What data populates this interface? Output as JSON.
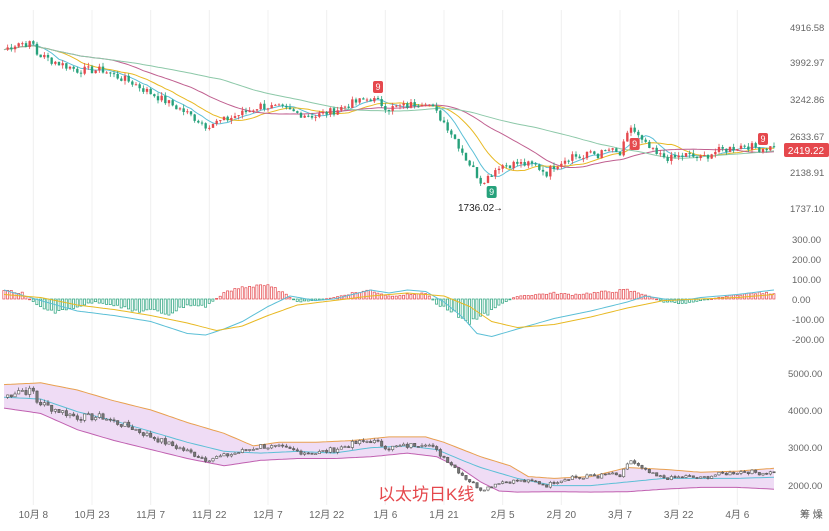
{
  "chart_data": {
    "type": "candlestick",
    "title": "以太坊日K线",
    "x_tick_labels": [
      "10月 8",
      "10月 23",
      "11月 7",
      "11月 22",
      "12月 7",
      "12月 22",
      "1月 6",
      "1月 21",
      "2月 5",
      "2月 20",
      "3月 7",
      "3月 22",
      "4月 6"
    ],
    "price_panel": {
      "y_tick_labels": [
        "4916.58",
        "3992.97",
        "3242.86",
        "2633.67",
        "2138.91",
        "1737.10"
      ],
      "y_range": [
        1600,
        5100
      ],
      "log_scale": true,
      "current_price": "2419.22",
      "low_annotation": "1736.02",
      "signal_badge": "9",
      "close_path": [
        [
          0,
          4500
        ],
        [
          4,
          4700
        ],
        [
          8,
          4650
        ],
        [
          9,
          4380
        ],
        [
          13,
          4200
        ],
        [
          20,
          3950
        ],
        [
          27,
          3950
        ],
        [
          30,
          3820
        ],
        [
          35,
          3650
        ],
        [
          38,
          3500
        ],
        [
          45,
          3200
        ],
        [
          50,
          3000
        ],
        [
          55,
          2780
        ],
        [
          60,
          2870
        ],
        [
          65,
          3000
        ],
        [
          70,
          3150
        ],
        [
          75,
          3100
        ],
        [
          80,
          3000
        ],
        [
          85,
          2950
        ],
        [
          90,
          3050
        ],
        [
          95,
          3200
        ],
        [
          100,
          3300
        ],
        [
          105,
          3100
        ],
        [
          110,
          3150
        ],
        [
          115,
          3250
        ],
        [
          118,
          3000
        ],
        [
          121,
          2750
        ],
        [
          124,
          2450
        ],
        [
          126,
          2250
        ],
        [
          128,
          2100
        ],
        [
          130,
          1950
        ],
        [
          132,
          2000
        ],
        [
          135,
          2150
        ],
        [
          140,
          2180
        ],
        [
          145,
          2150
        ],
        [
          148,
          2050
        ],
        [
          150,
          2150
        ],
        [
          155,
          2300
        ],
        [
          158,
          2250
        ],
        [
          160,
          2350
        ],
        [
          162,
          2300
        ],
        [
          165,
          2380
        ],
        [
          168,
          2300
        ],
        [
          171,
          2750
        ],
        [
          174,
          2500
        ],
        [
          178,
          2300
        ],
        [
          182,
          2250
        ],
        [
          186,
          2300
        ],
        [
          190,
          2250
        ],
        [
          194,
          2350
        ],
        [
          198,
          2400
        ],
        [
          202,
          2450
        ],
        [
          206,
          2400
        ],
        [
          210,
          2419
        ]
      ]
    },
    "macd_panel": {
      "y_tick_labels": [
        "300.00",
        "200.00",
        "100.00",
        "0.00",
        "-100.00",
        "-200.00"
      ],
      "y_range": [
        -270,
        300
      ],
      "histogram_path": [
        [
          0,
          60
        ],
        [
          5,
          40
        ],
        [
          10,
          -60
        ],
        [
          15,
          -90
        ],
        [
          20,
          -50
        ],
        [
          25,
          -20
        ],
        [
          30,
          -40
        ],
        [
          35,
          -80
        ],
        [
          40,
          -80
        ],
        [
          45,
          -100
        ],
        [
          50,
          -40
        ],
        [
          55,
          -50
        ],
        [
          60,
          40
        ],
        [
          65,
          80
        ],
        [
          70,
          100
        ],
        [
          75,
          60
        ],
        [
          80,
          -20
        ],
        [
          85,
          -10
        ],
        [
          90,
          10
        ],
        [
          95,
          40
        ],
        [
          100,
          60
        ],
        [
          105,
          20
        ],
        [
          110,
          30
        ],
        [
          115,
          40
        ],
        [
          118,
          -30
        ],
        [
          121,
          -70
        ],
        [
          124,
          -110
        ],
        [
          127,
          -150
        ],
        [
          130,
          -130
        ],
        [
          133,
          -80
        ],
        [
          136,
          -30
        ],
        [
          140,
          20
        ],
        [
          145,
          30
        ],
        [
          150,
          40
        ],
        [
          155,
          30
        ],
        [
          160,
          40
        ],
        [
          165,
          50
        ],
        [
          170,
          60
        ],
        [
          175,
          30
        ],
        [
          180,
          -20
        ],
        [
          185,
          -30
        ],
        [
          190,
          -10
        ],
        [
          195,
          10
        ],
        [
          200,
          30
        ],
        [
          205,
          40
        ],
        [
          210,
          40
        ]
      ],
      "dif_path": [
        [
          0,
          60
        ],
        [
          10,
          -10
        ],
        [
          20,
          -80
        ],
        [
          30,
          -110
        ],
        [
          40,
          -150
        ],
        [
          50,
          -230
        ],
        [
          55,
          -240
        ],
        [
          60,
          -200
        ],
        [
          65,
          -150
        ],
        [
          72,
          -50
        ],
        [
          78,
          20
        ],
        [
          85,
          -10
        ],
        [
          90,
          0
        ],
        [
          95,
          30
        ],
        [
          100,
          60
        ],
        [
          105,
          40
        ],
        [
          110,
          60
        ],
        [
          115,
          50
        ],
        [
          120,
          -20
        ],
        [
          125,
          -120
        ],
        [
          129,
          -230
        ],
        [
          133,
          -250
        ],
        [
          140,
          -200
        ],
        [
          150,
          -130
        ],
        [
          160,
          -80
        ],
        [
          170,
          -20
        ],
        [
          175,
          20
        ],
        [
          180,
          0
        ],
        [
          185,
          -10
        ],
        [
          190,
          10
        ],
        [
          200,
          30
        ],
        [
          210,
          60
        ]
      ],
      "dea_path": [
        [
          0,
          30
        ],
        [
          10,
          10
        ],
        [
          20,
          -40
        ],
        [
          30,
          -70
        ],
        [
          40,
          -110
        ],
        [
          50,
          -160
        ],
        [
          58,
          -210
        ],
        [
          65,
          -180
        ],
        [
          72,
          -110
        ],
        [
          80,
          -40
        ],
        [
          90,
          -10
        ],
        [
          100,
          20
        ],
        [
          110,
          40
        ],
        [
          120,
          20
        ],
        [
          127,
          -50
        ],
        [
          133,
          -150
        ],
        [
          140,
          -190
        ],
        [
          150,
          -170
        ],
        [
          160,
          -120
        ],
        [
          170,
          -60
        ],
        [
          180,
          -10
        ],
        [
          190,
          0
        ],
        [
          200,
          10
        ],
        [
          210,
          30
        ]
      ]
    },
    "boll_panel": {
      "y_tick_labels": [
        "5000.00",
        "4000.00",
        "3000.00",
        "2000.00"
      ],
      "y_range": [
        1650,
        5200
      ],
      "upper_band_path": [
        [
          0,
          4850
        ],
        [
          10,
          4900
        ],
        [
          20,
          4700
        ],
        [
          30,
          4400
        ],
        [
          40,
          4150
        ],
        [
          50,
          3800
        ],
        [
          60,
          3500
        ],
        [
          68,
          3150
        ],
        [
          75,
          3250
        ],
        [
          85,
          3250
        ],
        [
          95,
          3300
        ],
        [
          105,
          3400
        ],
        [
          115,
          3400
        ],
        [
          120,
          3250
        ],
        [
          125,
          3050
        ],
        [
          130,
          2850
        ],
        [
          138,
          2600
        ],
        [
          143,
          2300
        ],
        [
          150,
          2250
        ],
        [
          160,
          2300
        ],
        [
          170,
          2550
        ],
        [
          180,
          2500
        ],
        [
          190,
          2420
        ],
        [
          200,
          2450
        ],
        [
          210,
          2530
        ]
      ],
      "middle_band_path": [
        [
          0,
          4500
        ],
        [
          10,
          4450
        ],
        [
          20,
          4100
        ],
        [
          30,
          3850
        ],
        [
          40,
          3550
        ],
        [
          50,
          3250
        ],
        [
          60,
          3000
        ],
        [
          70,
          2950
        ],
        [
          80,
          3000
        ],
        [
          90,
          2950
        ],
        [
          100,
          3100
        ],
        [
          110,
          3150
        ],
        [
          118,
          3050
        ],
        [
          125,
          2750
        ],
        [
          130,
          2550
        ],
        [
          140,
          2250
        ],
        [
          150,
          2050
        ],
        [
          160,
          2050
        ],
        [
          170,
          2150
        ],
        [
          180,
          2250
        ],
        [
          190,
          2250
        ],
        [
          200,
          2250
        ],
        [
          210,
          2280
        ]
      ],
      "lower_band_path": [
        [
          0,
          4200
        ],
        [
          10,
          4050
        ],
        [
          20,
          3600
        ],
        [
          30,
          3300
        ],
        [
          40,
          3050
        ],
        [
          50,
          2800
        ],
        [
          60,
          2600
        ],
        [
          70,
          2750
        ],
        [
          80,
          2800
        ],
        [
          90,
          2800
        ],
        [
          100,
          2850
        ],
        [
          110,
          2950
        ],
        [
          118,
          2850
        ],
        [
          125,
          2500
        ],
        [
          130,
          2150
        ],
        [
          135,
          1900
        ],
        [
          140,
          1870
        ],
        [
          150,
          1880
        ],
        [
          160,
          1870
        ],
        [
          170,
          1880
        ],
        [
          180,
          1950
        ],
        [
          190,
          2000
        ],
        [
          200,
          2000
        ],
        [
          210,
          1950
        ]
      ]
    }
  },
  "ui": {
    "badges": [
      {
        "label": "9",
        "color": "#e5484d"
      },
      {
        "label": "9",
        "color": "#26a17b"
      },
      {
        "label": "9",
        "color": "#e5484d"
      },
      {
        "label": "9",
        "color": "#e5484d"
      }
    ],
    "watermark_label": "以太坊日K线",
    "corner_label": "筹 燥"
  },
  "colors": {
    "up": "#e5484d",
    "down": "#26a17b",
    "ma1": "#5bbfd6",
    "ma2": "#e8b923",
    "ma3": "#c06090",
    "ma4": "#8cc8a8",
    "macd_dif": "#5bbfd6",
    "macd_dea": "#e8b923",
    "boll_fill": "#efdcf5",
    "boll_upper": "#e8a050",
    "boll_lower": "#c060b0",
    "boll_mid": "#5bbfd6",
    "axis_text": "#666666",
    "grid": "#f0f0f0",
    "price_tag_bg": "#e5484d"
  }
}
